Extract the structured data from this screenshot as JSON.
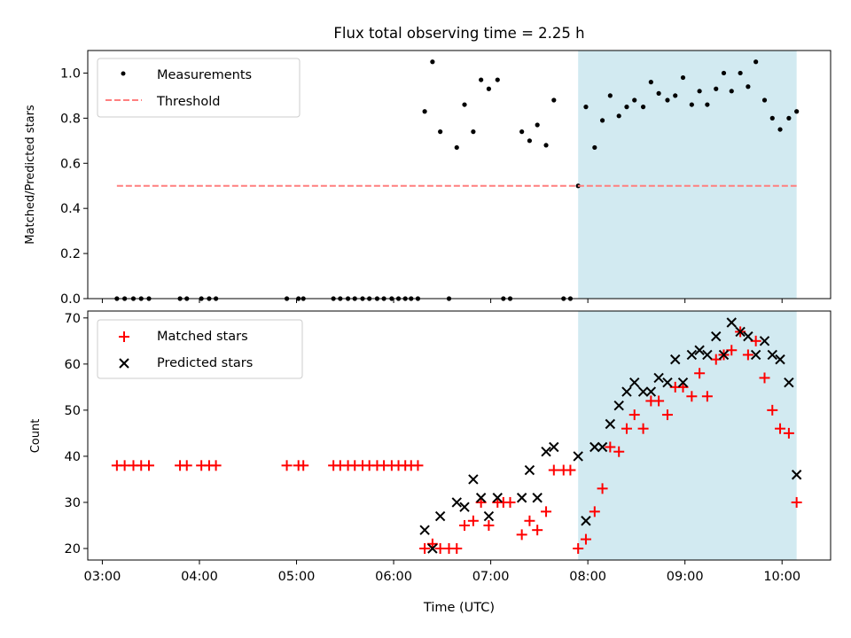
{
  "chart_data": [
    {
      "type": "scatter",
      "title": "Flux total observing time = 2.25 h",
      "xlabel": "",
      "ylabel": "Matched/Predicted stars",
      "xlim": [
        2.85,
        10.5
      ],
      "ylim": [
        0,
        1.1
      ],
      "yticks": [
        0.0,
        0.2,
        0.4,
        0.6,
        0.8,
        1.0
      ],
      "ytick_labels": [
        "0.0",
        "0.2",
        "0.4",
        "0.6",
        "0.8",
        "1.0"
      ],
      "shaded_span": {
        "x0": 7.9,
        "x1": 10.15,
        "color": "#add8e6"
      },
      "legend": {
        "location": "top-left",
        "entries": [
          "Measurements",
          "Threshold"
        ]
      },
      "series": [
        {
          "name": "Measurements",
          "marker": "dot",
          "color": "#000000",
          "x": [
            3.15,
            3.23,
            3.32,
            3.4,
            3.48,
            3.8,
            3.87,
            4.02,
            4.1,
            4.17,
            4.9,
            5.02,
            5.07,
            5.38,
            5.45,
            5.53,
            5.6,
            5.68,
            5.75,
            5.83,
            5.9,
            5.98,
            6.05,
            6.12,
            6.18,
            6.25,
            6.32,
            6.4,
            6.48,
            6.57,
            6.65,
            6.73,
            6.82,
            6.9,
            6.98,
            7.07,
            7.13,
            7.2,
            7.32,
            7.4,
            7.48,
            7.57,
            7.65,
            7.75,
            7.82,
            7.9,
            7.98,
            8.07,
            8.15,
            8.23,
            8.32,
            8.4,
            8.48,
            8.57,
            8.65,
            8.73,
            8.82,
            8.9,
            8.98,
            9.07,
            9.15,
            9.23,
            9.32,
            9.4,
            9.48,
            9.57,
            9.65,
            9.73,
            9.82,
            9.9,
            9.98,
            10.07,
            10.15
          ],
          "y": [
            0,
            0,
            0,
            0,
            0,
            0,
            0,
            0,
            0,
            0,
            0,
            0,
            0,
            0,
            0,
            0,
            0,
            0,
            0,
            0,
            0,
            0,
            0,
            0,
            0,
            0,
            0.83,
            1.05,
            0.74,
            0,
            0.67,
            0.86,
            0.74,
            0.97,
            0.93,
            0.97,
            0,
            0,
            0.74,
            0.7,
            0.77,
            0.68,
            0.88,
            0,
            0,
            0.5,
            0.85,
            0.67,
            0.79,
            0.9,
            0.81,
            0.85,
            0.88,
            0.85,
            0.96,
            0.91,
            0.88,
            0.9,
            0.98,
            0.86,
            0.92,
            0.86,
            0.93,
            1.0,
            0.92,
            1.0,
            0.94,
            1.05,
            0.88,
            0.8,
            0.75,
            0.8,
            0.83
          ]
        },
        {
          "name": "Threshold",
          "style": "dashed",
          "color": "#ff7f7f",
          "x": [
            3.15,
            10.15
          ],
          "y": [
            0.5,
            0.5
          ]
        }
      ]
    },
    {
      "type": "scatter",
      "title": "",
      "xlabel": "Time (UTC)",
      "ylabel": "Count",
      "xlim": [
        2.85,
        10.5
      ],
      "ylim": [
        17.5,
        71.5
      ],
      "yticks": [
        20,
        30,
        40,
        50,
        60,
        70
      ],
      "ytick_labels": [
        "20",
        "30",
        "40",
        "50",
        "60",
        "70"
      ],
      "xticks": [
        3,
        4,
        5,
        6,
        7,
        8,
        9,
        10
      ],
      "xtick_labels": [
        "03:00",
        "04:00",
        "05:00",
        "06:00",
        "07:00",
        "08:00",
        "09:00",
        "10:00"
      ],
      "shaded_span": {
        "x0": 7.9,
        "x1": 10.15,
        "color": "#add8e6"
      },
      "legend": {
        "location": "top-left",
        "entries": [
          "Matched stars",
          "Predicted stars"
        ]
      },
      "series": [
        {
          "name": "Matched stars",
          "marker": "plus",
          "color": "#ff0000",
          "x": [
            3.15,
            3.23,
            3.32,
            3.4,
            3.48,
            3.8,
            3.87,
            4.02,
            4.1,
            4.17,
            4.9,
            5.02,
            5.07,
            5.38,
            5.45,
            5.53,
            5.6,
            5.68,
            5.75,
            5.83,
            5.9,
            5.98,
            6.05,
            6.12,
            6.18,
            6.25,
            6.32,
            6.4,
            6.48,
            6.57,
            6.65,
            6.73,
            6.82,
            6.9,
            6.98,
            7.07,
            7.13,
            7.2,
            7.32,
            7.4,
            7.48,
            7.57,
            7.65,
            7.75,
            7.82,
            7.9,
            7.98,
            8.07,
            8.15,
            8.23,
            8.32,
            8.4,
            8.48,
            8.57,
            8.65,
            8.73,
            8.82,
            8.9,
            8.98,
            9.07,
            9.15,
            9.23,
            9.32,
            9.4,
            9.48,
            9.57,
            9.65,
            9.73,
            9.82,
            9.9,
            9.98,
            10.07,
            10.15
          ],
          "y": [
            38,
            38,
            38,
            38,
            38,
            38,
            38,
            38,
            38,
            38,
            38,
            38,
            38,
            38,
            38,
            38,
            38,
            38,
            38,
            38,
            38,
            38,
            38,
            38,
            38,
            38,
            20,
            21,
            20,
            20,
            20,
            25,
            26,
            30,
            25,
            30,
            30,
            30,
            23,
            26,
            24,
            28,
            37,
            37,
            37,
            20,
            22,
            28,
            33,
            42,
            41,
            46,
            49,
            46,
            52,
            52,
            49,
            55,
            55,
            53,
            58,
            53,
            61,
            62,
            63,
            67,
            62,
            65,
            57,
            50,
            46,
            45,
            30
          ]
        },
        {
          "name": "Predicted stars",
          "marker": "x",
          "color": "#000000",
          "x": [
            6.32,
            6.4,
            6.48,
            6.65,
            6.73,
            6.82,
            6.9,
            6.98,
            7.07,
            7.32,
            7.4,
            7.48,
            7.57,
            7.65,
            7.9,
            7.98,
            8.07,
            8.15,
            8.23,
            8.32,
            8.4,
            8.48,
            8.57,
            8.65,
            8.73,
            8.82,
            8.9,
            8.98,
            9.07,
            9.15,
            9.23,
            9.32,
            9.4,
            9.48,
            9.57,
            9.65,
            9.73,
            9.82,
            9.9,
            9.98,
            10.07,
            10.15
          ],
          "y": [
            24,
            20,
            27,
            30,
            29,
            35,
            31,
            27,
            31,
            31,
            37,
            31,
            41,
            42,
            40,
            26,
            42,
            42,
            47,
            51,
            54,
            56,
            54,
            54,
            57,
            56,
            61,
            56,
            62,
            63,
            62,
            66,
            62,
            69,
            67,
            66,
            62,
            65,
            62,
            61,
            56,
            36
          ]
        }
      ]
    }
  ]
}
